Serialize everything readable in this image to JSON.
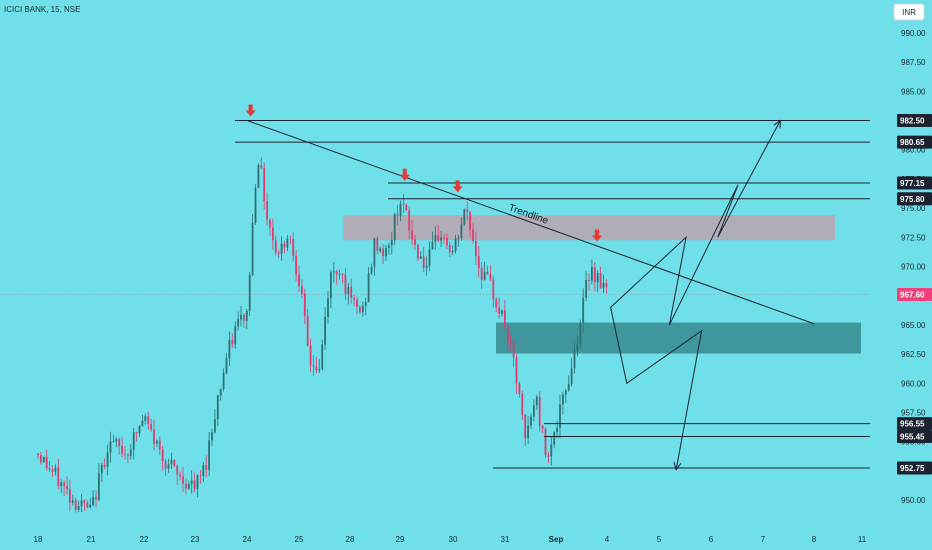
{
  "chart_title": "ICICI BANK, 15, NSE",
  "currency": "INR",
  "colors": {
    "background": "#6fdfe9",
    "up_candle": "#2f6f72",
    "down_candle": "#e23a6b",
    "price_label_bg": "#1d2230",
    "current_label_bg": "#f0407a",
    "arrow": "#e53935",
    "resistance_zone": "#b7a7b3",
    "support_zone": "#3a8f95",
    "line": "#1d2230"
  },
  "chart_data": {
    "type": "candlestick",
    "title": "ICICI BANK, 15, NSE",
    "ylim": [
      948.3,
      992.3
    ],
    "y_ticks": [
      950.0,
      952.5,
      955.0,
      957.5,
      960.0,
      962.5,
      965.0,
      967.5,
      970.0,
      972.5,
      975.0,
      977.5,
      980.0,
      985.0,
      987.5,
      990.0
    ],
    "x_ticks": [
      "18",
      "21",
      "22",
      "23",
      "24",
      "25",
      "28",
      "29",
      "30",
      "31",
      "Sep",
      "4",
      "5",
      "6",
      "7",
      "8",
      "11"
    ],
    "current_price": 967.6,
    "price_levels": [
      982.5,
      980.65,
      977.15,
      975.8,
      956.55,
      955.45,
      952.75
    ],
    "annotations": [
      "Trendline"
    ],
    "candle_segments": [
      {
        "x": [
          "18",
          "21"
        ],
        "path": [
          954,
          952,
          950,
          949
        ]
      },
      {
        "x": [
          "21",
          "22"
        ],
        "path": [
          949,
          955,
          954,
          957
        ]
      },
      {
        "x": [
          "22",
          "23"
        ],
        "path": [
          957,
          954,
          952,
          951
        ]
      },
      {
        "x": [
          "23",
          "24"
        ],
        "path": [
          951,
          953,
          958,
          962,
          965,
          966
        ]
      },
      {
        "x": [
          "24",
          "25"
        ],
        "path": [
          966,
          980,
          974,
          971,
          973,
          969
        ]
      },
      {
        "x": [
          "25",
          "28"
        ],
        "path": [
          969,
          962,
          961,
          969,
          970,
          967
        ]
      },
      {
        "x": [
          "28",
          "29"
        ],
        "path": [
          967,
          966,
          972,
          971,
          976
        ]
      },
      {
        "x": [
          "29",
          "30"
        ],
        "path": [
          976,
          972,
          970,
          973,
          971
        ]
      },
      {
        "x": [
          "30",
          "31"
        ],
        "path": [
          971,
          975,
          970,
          968,
          965
        ]
      },
      {
        "x": [
          "31",
          "Sep"
        ],
        "path": [
          965,
          961,
          955,
          959,
          954,
          956
        ]
      },
      {
        "x": [
          "Sep",
          "4"
        ],
        "path": [
          956,
          962,
          970,
          968
        ]
      }
    ],
    "resistance_zone": {
      "y": [
        972.25,
        974.4
      ],
      "x": [
        "28",
        "8"
      ]
    },
    "support_zone": {
      "y": [
        962.55,
        965.2
      ],
      "x": [
        "31",
        "11"
      ]
    },
    "trendline": {
      "from": [
        "24",
        982.5
      ],
      "to": [
        "8",
        965.1
      ]
    },
    "level_lines": [
      {
        "value": 982.5,
        "x_start": "24"
      },
      {
        "value": 980.65,
        "x_start": "24"
      },
      {
        "value": 977.15,
        "x_start": "29"
      },
      {
        "value": 975.8,
        "x_start": "29"
      },
      {
        "value": 956.55,
        "x_start": "Sep"
      },
      {
        "value": 955.45,
        "x_start": "Sep"
      },
      {
        "value": 952.75,
        "x_start": "31"
      }
    ],
    "peak_arrows": [
      {
        "x": "24",
        "y": 982.5
      },
      {
        "x": "29",
        "y": 977.0
      },
      {
        "x": "30",
        "y": 976.0
      },
      {
        "x": "4",
        "y": 971.8
      }
    ],
    "projection_up": [
      [
        "4",
        966.5
      ],
      [
        "5",
        972.5
      ],
      [
        "5",
        965.0
      ],
      [
        "6",
        977.0
      ],
      [
        "6",
        972.5
      ],
      [
        "7",
        982.5
      ]
    ],
    "projection_down": [
      [
        "4",
        966.5
      ],
      [
        "4",
        960.0
      ],
      [
        "5",
        964.5
      ],
      [
        "5",
        952.6
      ]
    ]
  }
}
